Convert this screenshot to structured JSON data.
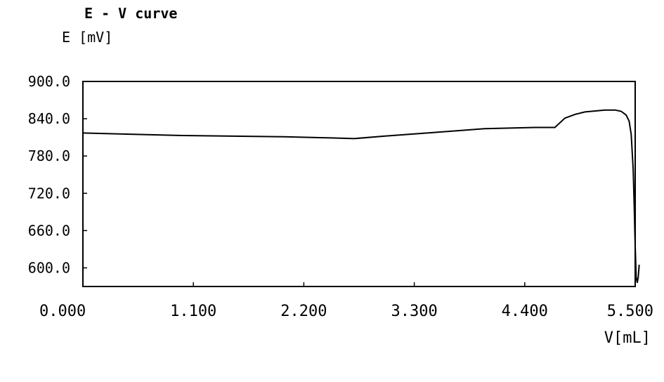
{
  "chart_data": {
    "type": "line",
    "title": "E - V curve",
    "ylabel": "E [mV]",
    "xlabel": "V[mL]",
    "xlim": [
      0.0,
      5.5
    ],
    "ylim": [
      570.0,
      900.0
    ],
    "x_ticks": [
      {
        "value": 0.0,
        "label": "0.000"
      },
      {
        "value": 1.1,
        "label": "1.100"
      },
      {
        "value": 2.2,
        "label": "2.200"
      },
      {
        "value": 3.3,
        "label": "3.300"
      },
      {
        "value": 4.4,
        "label": "4.400"
      },
      {
        "value": 5.5,
        "label": "5.500"
      }
    ],
    "y_ticks": [
      {
        "value": 900.0,
        "label": "900.0"
      },
      {
        "value": 840.0,
        "label": "840.0"
      },
      {
        "value": 780.0,
        "label": "780.0"
      },
      {
        "value": 720.0,
        "label": "720.0"
      },
      {
        "value": 660.0,
        "label": "660.0"
      },
      {
        "value": 600.0,
        "label": "600.0"
      }
    ],
    "grid": false,
    "legend": "none",
    "series": [
      {
        "color": "#000000",
        "x": [
          0.0,
          0.5,
          1.0,
          1.5,
          2.0,
          2.5,
          2.7,
          3.0,
          3.5,
          4.0,
          4.5,
          4.7,
          4.8,
          4.9,
          5.0,
          5.2,
          5.3,
          5.36,
          5.41,
          5.44,
          5.46,
          5.48,
          5.49,
          5.5,
          5.51,
          5.52,
          5.53,
          5.54
        ],
        "values": [
          817,
          815,
          813,
          812,
          811,
          809,
          808,
          812,
          818,
          824,
          826,
          826,
          841,
          847,
          851,
          854,
          854,
          852,
          846,
          836,
          815,
          760,
          700,
          635,
          585,
          576,
          585,
          605
        ]
      }
    ]
  }
}
